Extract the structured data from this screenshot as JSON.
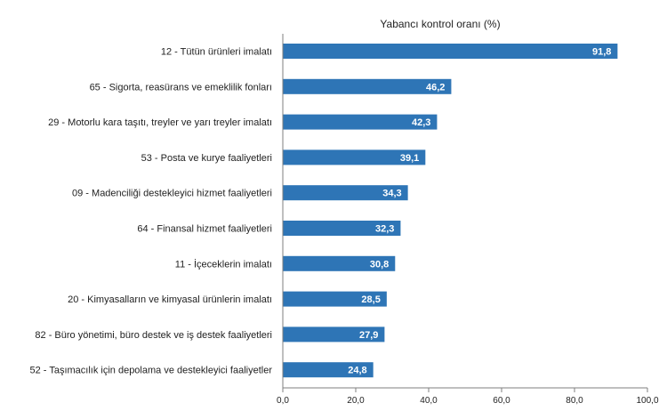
{
  "chart_data": {
    "type": "bar",
    "orientation": "horizontal",
    "title": "Yabancı kontrol oranı (%)",
    "categories": [
      "12 - Tütün ürünleri imalatı",
      "65 - Sigorta, reasürans ve emeklilik fonları",
      "29 - Motorlu kara taşıtı, treyler ve yarı treyler imalatı",
      "53 - Posta ve kurye faaliyetleri",
      "09 - Madenciliği destekleyici hizmet faaliyetleri",
      "64 - Finansal hizmet faaliyetleri",
      "11 - İçeceklerin imalatı",
      "20 - Kimyasalların ve kimyasal ürünlerin imalatı",
      "82 - Büro yönetimi, büro destek ve iş destek faaliyetleri",
      "52 - Taşımacılık için depolama ve destekleyici faaliyetler"
    ],
    "values": [
      91.8,
      46.2,
      42.3,
      39.1,
      34.3,
      32.3,
      30.8,
      28.5,
      27.9,
      24.8
    ],
    "value_labels": [
      "91,8",
      "46,2",
      "42,3",
      "39,1",
      "34,3",
      "32,3",
      "30,8",
      "28,5",
      "27,9",
      "24,8"
    ],
    "xlim": [
      0,
      100
    ],
    "x_ticks": [
      0,
      20,
      40,
      60,
      80,
      100
    ],
    "x_tick_labels": [
      "0,0",
      "20,0",
      "40,0",
      "60,0",
      "80,0",
      "100,0"
    ],
    "grid": false,
    "bar_color": "#2e75b6"
  }
}
